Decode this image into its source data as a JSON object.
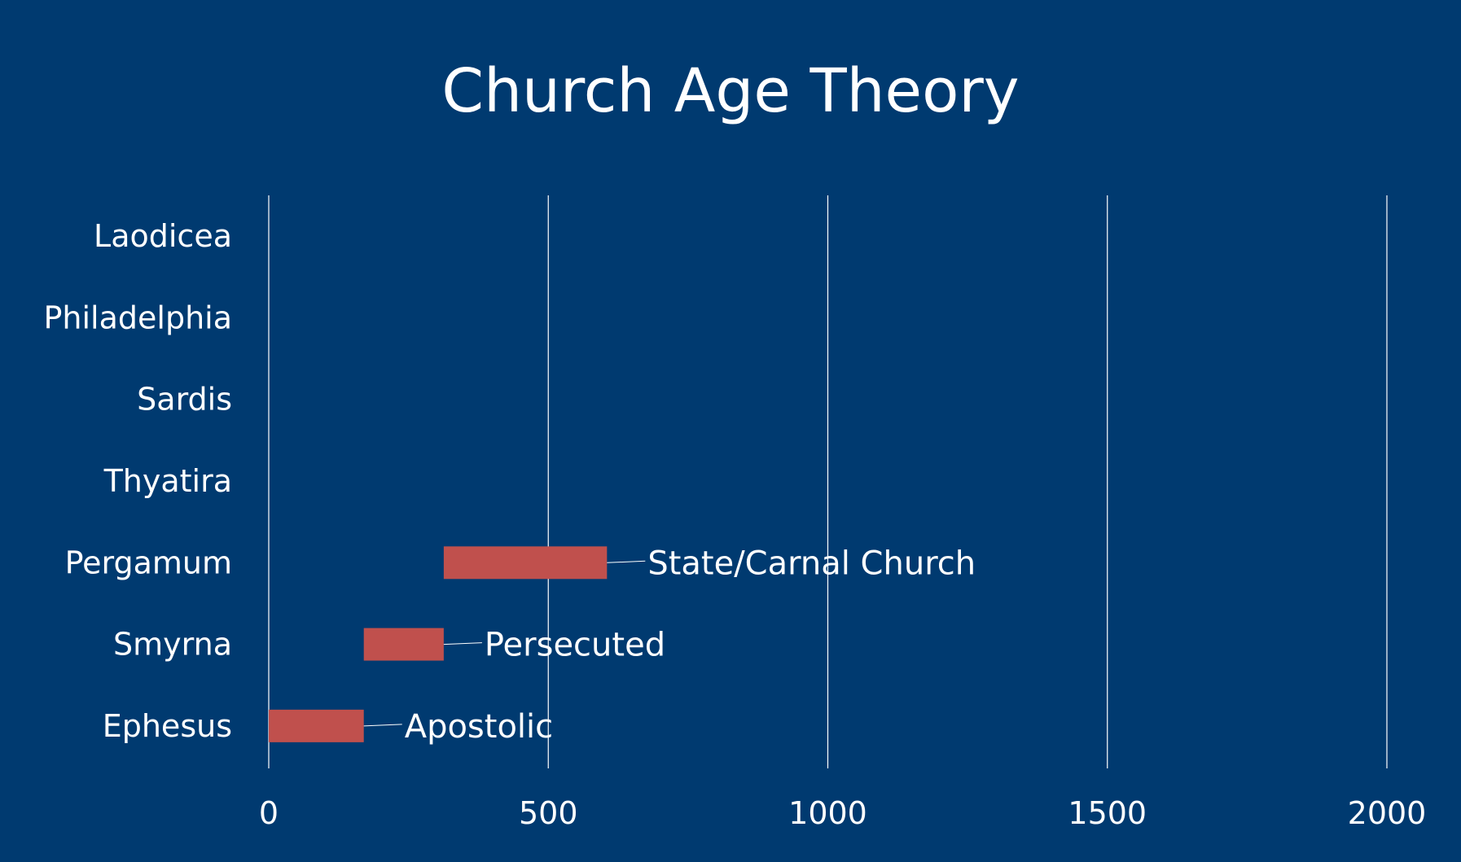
{
  "chart_data": {
    "type": "bar",
    "orientation": "horizontal",
    "stacked": true,
    "title": "Church Age Theory",
    "xlabel": "",
    "ylabel": "",
    "xlim": [
      0,
      2000
    ],
    "xticks": [
      0,
      500,
      1000,
      1500,
      2000
    ],
    "grid": true,
    "legend": "none",
    "categories": [
      "Ephesus",
      "Smyrna",
      "Pergamum",
      "Thyatira",
      "Sardis",
      "Philadelphia",
      "Laodicea"
    ],
    "series": [
      {
        "role": "offset",
        "visible": false,
        "values": [
          0,
          170,
          313,
          null,
          null,
          null,
          null
        ]
      },
      {
        "role": "duration",
        "color": "#c0504d",
        "values": [
          170,
          143,
          292,
          null,
          null,
          null,
          null
        ],
        "labels": [
          "Apostolic",
          "Persecuted",
          "State/Carnal Church",
          "",
          "",
          "",
          ""
        ]
      }
    ]
  },
  "colors": {
    "background": "#003a70",
    "bar": "#c0504d",
    "text": "#ffffff",
    "grid": "#ffffff"
  }
}
